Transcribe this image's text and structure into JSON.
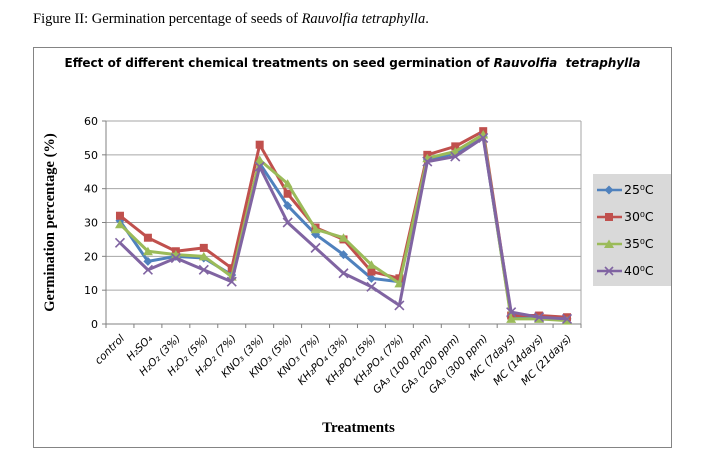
{
  "figure_caption": {
    "prefix": "Figure II: Germination percentage of seeds of ",
    "species": "Rauvolfia tetraphylla",
    "suffix": "."
  },
  "chart": {
    "title_prefix": "Effect of different chemical treatments on seed germination of ",
    "title_species": "Rauvolfia  tetraphylla",
    "y_axis_title": "Germination percentage (%)",
    "x_axis_title": "Treatments"
  },
  "chart_data": {
    "type": "line",
    "title": "Effect of different chemical treatments on seed germination of Rauvolfia tetraphylla",
    "xlabel": "Treatments",
    "ylabel": "Germination percentage (%)",
    "ylim": [
      0,
      60
    ],
    "yticks": [
      0,
      10,
      20,
      30,
      40,
      50,
      60
    ],
    "grid": true,
    "legend_position": "right",
    "categories": [
      "control",
      "H₂SO₄",
      "H₂O₂ (3%)",
      "H₂O₂ (5%)",
      "H₂O₂ (7%)",
      "KNO₃ (3%)",
      "KNO₃ (5%)",
      "KNO₃ (7%)",
      "KH₂PO₄ (3%)",
      "KH₂PO₄ (5%)",
      "KH₂PO₄ (7%)",
      "GA₃ (100 ppm)",
      "GA₃ (200 ppm)",
      "GA₃ (300 ppm)",
      "MC (7days)",
      "MC (14days)",
      "MC (21days)"
    ],
    "series": [
      {
        "name": "25⁰C",
        "color": "#4F81BD",
        "marker": "diamond",
        "values": [
          30.5,
          18.5,
          20,
          19.5,
          14.5,
          47.5,
          35,
          26.5,
          20.5,
          13.5,
          12.5,
          48.5,
          50.5,
          55.5,
          2,
          2,
          1.5
        ]
      },
      {
        "name": "30⁰C",
        "color": "#C0504D",
        "marker": "square",
        "values": [
          32,
          25.5,
          21.5,
          22.5,
          16.5,
          53,
          38.5,
          28.5,
          25,
          15.5,
          13.5,
          50,
          52.5,
          57,
          2.5,
          2.5,
          2
        ]
      },
      {
        "name": "35⁰C",
        "color": "#9BBB59",
        "marker": "triangle",
        "values": [
          29.5,
          21.5,
          20.5,
          20,
          14,
          48.5,
          41.5,
          28,
          25.5,
          17.5,
          12,
          49,
          51,
          56,
          1.5,
          1.5,
          1
        ]
      },
      {
        "name": "40⁰C",
        "color": "#8064A2",
        "marker": "x",
        "values": [
          24,
          16,
          19.5,
          16,
          12.5,
          46.5,
          30,
          22.5,
          15,
          11,
          5.5,
          48,
          49.5,
          55,
          3.5,
          2,
          1.5
        ]
      }
    ]
  },
  "colors": {
    "gridline": "#A6A6A6",
    "axis": "#808080",
    "plot_border": "#A6A6A6",
    "legend_bg": "#D9D9D9",
    "chart_border": "#848484"
  }
}
